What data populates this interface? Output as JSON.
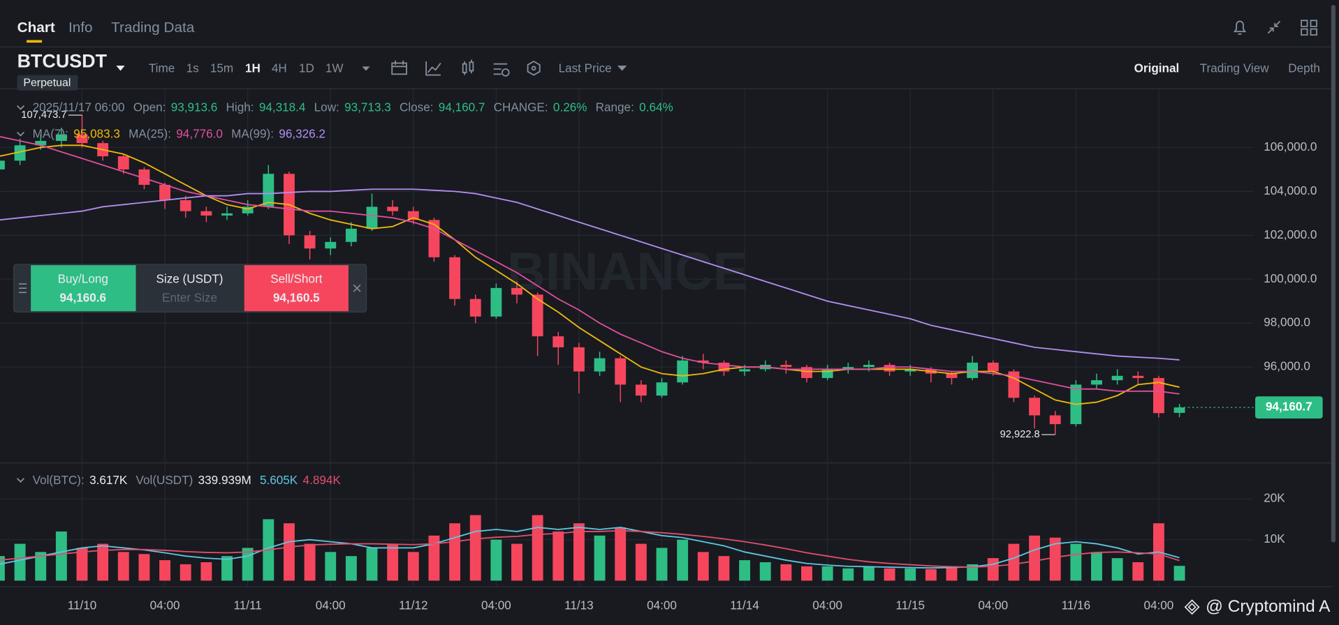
{
  "tabs": [
    "Chart",
    "Info",
    "Trading Data"
  ],
  "symbol": "BTCUSDT",
  "badge": "Perpetual",
  "intervals": [
    "Time",
    "1s",
    "15m",
    "1H",
    "4H",
    "1D",
    "1W"
  ],
  "price_type": "Last Price",
  "views": [
    "Original",
    "Trading View",
    "Depth"
  ],
  "order_panel": {
    "buy_label": "Buy/Long",
    "buy_price": "94,160.6",
    "size_label": "Size (USDT)",
    "size_placeholder": "Enter Size",
    "sell_label": "Sell/Short",
    "sell_price": "94,160.5"
  },
  "watermark": "BINANCE",
  "credit": "@ Cryptomind A",
  "chart_data": {
    "type": "candlestick",
    "info": {
      "time": "2025/11/17 06:00",
      "fields": [
        {
          "label": "Open:",
          "value": "93,913.6"
        },
        {
          "label": "High:",
          "value": "94,318.4"
        },
        {
          "label": "Low:",
          "value": "93,713.3"
        },
        {
          "label": "Close:",
          "value": "94,160.7"
        },
        {
          "label": "CHANGE:",
          "value": "0.26%"
        },
        {
          "label": "Range:",
          "value": "0.64%"
        }
      ],
      "value_color": "#2ebd85"
    },
    "ma_legend": [
      {
        "label": "MA(7):",
        "value": "95,083.3"
      },
      {
        "label": "MA(25):",
        "value": "94,776.0"
      },
      {
        "label": "MA(99):",
        "value": "96,326.2"
      }
    ],
    "categories": [
      null,
      null,
      null,
      null,
      "11/10",
      null,
      null,
      null,
      "04:00",
      null,
      null,
      null,
      "11/11",
      null,
      null,
      null,
      "04:00",
      null,
      null,
      null,
      "11/12",
      null,
      null,
      null,
      "04:00",
      null,
      null,
      null,
      "11/13",
      null,
      null,
      null,
      "04:00",
      null,
      null,
      null,
      "11/14",
      null,
      null,
      null,
      "04:00",
      null,
      null,
      null,
      "11/15",
      null,
      null,
      null,
      "04:00",
      null,
      null,
      null,
      "11/16",
      null,
      null,
      null,
      "04:00",
      null
    ],
    "open": [
      105000,
      105400,
      106100,
      106300,
      106600,
      106200,
      105600,
      105000,
      104300,
      103600,
      103100,
      102900,
      103000,
      103300,
      104800,
      102000,
      101400,
      101700,
      102300,
      103300,
      103100,
      102700,
      101000,
      99100,
      98300,
      99600,
      99300,
      97400,
      96900,
      95800,
      96400,
      95200,
      94700,
      95300,
      96300,
      96200,
      95800,
      95900,
      96100,
      96000,
      95500,
      95900,
      96000,
      96100,
      95800,
      95900,
      95700,
      95500,
      96200,
      95800,
      94600,
      93800,
      93400,
      95200,
      95400,
      95600,
      95500,
      93913.6
    ],
    "high": [
      105800,
      106400,
      106600,
      106900,
      107473.7,
      106300,
      105700,
      105100,
      104400,
      103800,
      103300,
      103300,
      103600,
      105200,
      104900,
      102200,
      101900,
      102600,
      103900,
      103600,
      103300,
      102800,
      101100,
      99300,
      99800,
      99900,
      99400,
      97600,
      97100,
      96700,
      96500,
      95400,
      95500,
      96500,
      96600,
      96300,
      96100,
      96300,
      96300,
      96100,
      96100,
      96200,
      96300,
      96200,
      96100,
      96000,
      95800,
      96500,
      96300,
      95900,
      94700,
      94000,
      95400,
      95700,
      95900,
      95800,
      95600,
      94318.4
    ],
    "low": [
      104600,
      105200,
      105900,
      106000,
      106000,
      105400,
      104800,
      104100,
      103200,
      102800,
      102600,
      102700,
      102900,
      103200,
      101600,
      100900,
      101100,
      101500,
      102200,
      102900,
      102500,
      100800,
      98800,
      98000,
      98200,
      98900,
      96500,
      96100,
      94800,
      95600,
      94400,
      94400,
      94600,
      95200,
      95900,
      95600,
      95600,
      95800,
      95700,
      95300,
      95400,
      95700,
      95800,
      95600,
      95600,
      95300,
      95200,
      95400,
      95600,
      94400,
      93200,
      92922.8,
      93300,
      95000,
      95200,
      95200,
      93700,
      93713.3
    ],
    "close": [
      105400,
      106100,
      106300,
      106600,
      106200,
      105600,
      105000,
      104300,
      103600,
      103100,
      102900,
      103000,
      103300,
      104800,
      102000,
      101400,
      101700,
      102300,
      103300,
      103100,
      102700,
      101000,
      99100,
      98300,
      99600,
      99300,
      97400,
      96900,
      95800,
      96400,
      95200,
      94700,
      95300,
      96300,
      96200,
      95800,
      95900,
      96100,
      96000,
      95500,
      95900,
      96000,
      96100,
      95800,
      95900,
      95700,
      95500,
      96200,
      95800,
      94600,
      93800,
      93400,
      95200,
      95400,
      95600,
      95500,
      93900,
      94160.7
    ],
    "up_color": "#2ebd85",
    "down_color": "#f6465d",
    "high_label": "107,473.7",
    "low_label": "92,922.8",
    "ma_series": [
      {
        "color": "#f0b90b",
        "values": [
          105600,
          105800,
          106000,
          106100,
          106100,
          105900,
          105700,
          105300,
          104800,
          104300,
          103800,
          103400,
          103200,
          103500,
          103400,
          103000,
          102700,
          102500,
          102300,
          102400,
          102800,
          102500,
          101800,
          101000,
          100400,
          99800,
          99100,
          98500,
          97800,
          97200,
          96600,
          96000,
          95700,
          95600,
          95700,
          95900,
          96000,
          96000,
          95900,
          95800,
          95800,
          95900,
          95900,
          95900,
          95900,
          95800,
          95700,
          95800,
          95800,
          95500,
          95000,
          94500,
          94300,
          94400,
          94700,
          95200,
          95300,
          95083.3
        ]
      },
      {
        "color": "#e04f9c",
        "values": [
          106500,
          106300,
          106100,
          105800,
          105500,
          105200,
          104900,
          104600,
          104300,
          104000,
          103800,
          103600,
          103400,
          103300,
          103200,
          103100,
          103100,
          103000,
          102900,
          102800,
          102600,
          102300,
          101800,
          101300,
          100800,
          100300,
          99700,
          99100,
          98600,
          98000,
          97500,
          97100,
          96700,
          96400,
          96200,
          96100,
          96000,
          96000,
          95900,
          95900,
          95900,
          95900,
          95900,
          96000,
          96000,
          95900,
          95800,
          95800,
          95700,
          95600,
          95400,
          95200,
          95000,
          95000,
          94900,
          94900,
          94900,
          94776.0
        ]
      },
      {
        "color": "#b28ff0",
        "values": [
          102700,
          102800,
          102900,
          103000,
          103100,
          103300,
          103400,
          103500,
          103600,
          103700,
          103800,
          103800,
          103900,
          103900,
          103950,
          104000,
          104000,
          104050,
          104100,
          104100,
          104100,
          104050,
          104000,
          103900,
          103700,
          103500,
          103200,
          102900,
          102600,
          102300,
          102000,
          101700,
          101400,
          101100,
          100800,
          100500,
          100200,
          99900,
          99600,
          99300,
          99000,
          98800,
          98600,
          98400,
          98200,
          97900,
          97700,
          97500,
          97300,
          97100,
          96900,
          96800,
          96700,
          96600,
          96500,
          96450,
          96400,
          96326.2
        ]
      }
    ],
    "ylim": [
      91630,
      108640
    ],
    "yticks": [
      {
        "value": 96000,
        "label": "96,000.0"
      },
      {
        "value": 98000,
        "label": "98,000.0"
      },
      {
        "value": 100000,
        "label": "100,000.0"
      },
      {
        "value": 102000,
        "label": "102,000.0"
      },
      {
        "value": 104000,
        "label": "104,000.0"
      },
      {
        "value": 106000,
        "label": "106,000.0"
      }
    ],
    "last_price_label": "94,160.7",
    "grid": true,
    "volume": {
      "legend": [
        {
          "text": "Vol(BTC):",
          "color": "#848e9c"
        },
        {
          "text": "3.617K",
          "color": "#eaecef"
        },
        {
          "text": "Vol(USDT)",
          "color": "#848e9c"
        },
        {
          "text": "339.939M",
          "color": "#eaecef"
        },
        {
          "text": "5.605K",
          "color": "#5fc6e0"
        },
        {
          "text": "4.894K",
          "color": "#e04f6b"
        }
      ],
      "values": [
        6000,
        9000,
        7000,
        12000,
        8000,
        9000,
        7000,
        6500,
        5000,
        4000,
        4500,
        6000,
        8000,
        15000,
        14000,
        9000,
        7000,
        6000,
        8000,
        9000,
        7000,
        11000,
        14000,
        16000,
        10000,
        9000,
        16000,
        12000,
        14000,
        11000,
        13000,
        9000,
        8000,
        10000,
        7000,
        6000,
        5000,
        4500,
        4000,
        3500,
        3500,
        3000,
        3500,
        3000,
        3000,
        2800,
        3500,
        4000,
        5500,
        9000,
        11000,
        10500,
        9000,
        7000,
        5500,
        4500,
        14000,
        3617
      ],
      "ylim": [
        0,
        28300
      ],
      "yticks": [
        {
          "value": 10000,
          "label": "10K"
        },
        {
          "value": 20000,
          "label": "20K"
        }
      ],
      "ma_series": [
        {
          "color": "#5fc6e0",
          "values": [
            4000,
            5000,
            6000,
            7000,
            8000,
            8500,
            8000,
            7500,
            6800,
            6000,
            5500,
            5200,
            6000,
            8000,
            9500,
            10000,
            9500,
            9000,
            8000,
            8000,
            8000,
            9000,
            10500,
            12000,
            12500,
            12000,
            13000,
            12500,
            13000,
            12500,
            13000,
            12000,
            11000,
            10500,
            9500,
            8500,
            7000,
            6000,
            5000,
            4200,
            3800,
            3500,
            3400,
            3300,
            3200,
            3100,
            3200,
            3400,
            4000,
            5500,
            7500,
            9000,
            9500,
            9000,
            8000,
            6500,
            7000,
            5605
          ]
        },
        {
          "color": "#e04f6b",
          "values": [
            5000,
            5500,
            6000,
            6500,
            7000,
            7400,
            7600,
            7600,
            7400,
            7100,
            6900,
            6800,
            7000,
            7500,
            8200,
            8700,
            8900,
            9000,
            9000,
            8900,
            8800,
            9000,
            9500,
            10200,
            10600,
            10800,
            11300,
            11500,
            12000,
            12000,
            12200,
            12000,
            11700,
            11300,
            10800,
            10200,
            9500,
            8700,
            7800,
            6800,
            6000,
            5200,
            4600,
            4200,
            3900,
            3600,
            3400,
            3300,
            3500,
            4000,
            4800,
            5700,
            6400,
            6900,
            7000,
            6800,
            6500,
            4894
          ]
        }
      ]
    }
  }
}
